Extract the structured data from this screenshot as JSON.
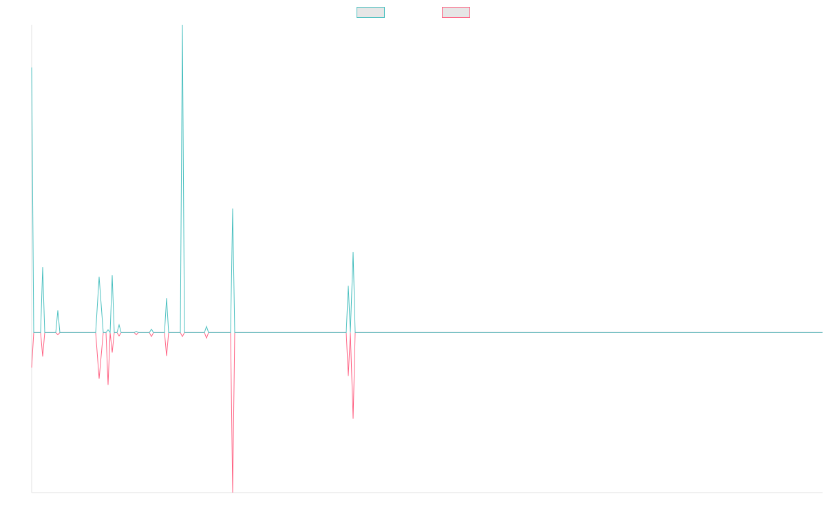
{
  "chart_data": {
    "type": "line",
    "x": [
      0,
      3,
      13,
      16,
      19,
      35,
      38,
      41,
      93,
      98,
      104,
      108,
      111,
      114,
      117,
      120,
      124,
      127,
      130,
      149,
      152,
      155,
      171,
      174,
      177,
      193,
      196,
      199,
      216,
      219,
      222,
      251,
      254,
      257,
      289,
      292,
      295,
      457,
      460,
      463,
      467,
      470,
      1149
    ],
    "series": [
      {
        "color": "#4bc0c0",
        "values": [
          86.1,
          0,
          0,
          21.3,
          0,
          0,
          7.2,
          0,
          0,
          18.1,
          0,
          0,
          0.9,
          0,
          18.6,
          0,
          0,
          2.5,
          0,
          0,
          0.4,
          0,
          0,
          1.1,
          0,
          0,
          11.2,
          0,
          0,
          100,
          0,
          0,
          2,
          0,
          0,
          40.3,
          0,
          0,
          15.2,
          0,
          26.2,
          0,
          0
        ]
      },
      {
        "color": "#ff6384",
        "values": [
          -11.4,
          0,
          0,
          -7.8,
          0,
          0,
          -0.7,
          0,
          0,
          -15,
          0,
          0,
          -17,
          0,
          -6.5,
          0,
          0,
          -1.1,
          0,
          0,
          -0.7,
          0,
          0,
          -1.3,
          0,
          0,
          -7.6,
          0,
          0,
          -1.3,
          0,
          0,
          -1.8,
          0,
          0,
          -52,
          0,
          0,
          -14.1,
          0,
          -28,
          0,
          0
        ]
      }
    ],
    "xlim": [
      0,
      1149
    ],
    "ylim": [
      -52,
      100
    ],
    "legend": "top"
  }
}
